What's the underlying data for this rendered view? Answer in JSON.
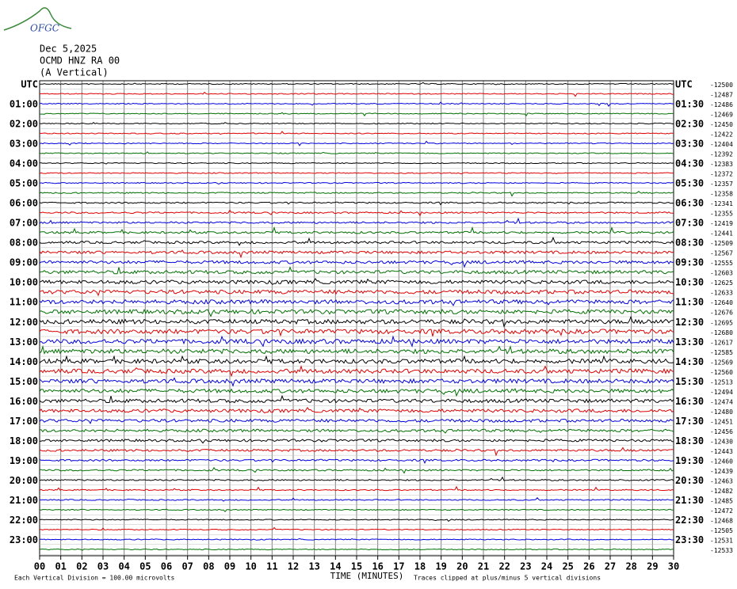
{
  "header": {
    "logo": "OFGC",
    "date": "Dec 5,2025",
    "station": "OCMD HNZ RA 00",
    "component": "(A Vertical)"
  },
  "left_labels": [
    "UTC",
    "01:00",
    "02:00",
    "03:00",
    "04:00",
    "05:00",
    "06:00",
    "07:00",
    "08:00",
    "09:00",
    "10:00",
    "11:00",
    "12:00",
    "13:00",
    "14:00",
    "15:00",
    "16:00",
    "17:00",
    "18:00",
    "19:00",
    "20:00",
    "21:00",
    "22:00",
    "23:00"
  ],
  "right_labels": [
    "UTC",
    "01:30",
    "02:30",
    "03:30",
    "04:30",
    "05:30",
    "06:30",
    "07:30",
    "08:30",
    "09:30",
    "10:30",
    "11:30",
    "12:30",
    "13:30",
    "14:30",
    "15:30",
    "16:30",
    "17:30",
    "18:30",
    "19:30",
    "20:30",
    "21:30",
    "22:30",
    "23:30"
  ],
  "trace_offsets": [
    -12500,
    -12487,
    -12486,
    -12469,
    -12450,
    -12422,
    -12404,
    -12392,
    -12383,
    -12372,
    -12357,
    -12358,
    -12341,
    -12355,
    -12419,
    -12441,
    -12509,
    -12567,
    -12555,
    -12603,
    -12625,
    -12633,
    -12640,
    -12676,
    -12695,
    -12680,
    -12617,
    -12585,
    -12569,
    -12560,
    -12513,
    -12494,
    -12474,
    -12480,
    -12451,
    -12456,
    -12430,
    -12443,
    -12460,
    -12439,
    -12463,
    -12482,
    -12485,
    -12472,
    -12468,
    -12505,
    -12531,
    -12533
  ],
  "x_labels": [
    "00",
    "01",
    "02",
    "03",
    "04",
    "05",
    "06",
    "07",
    "08",
    "09",
    "10",
    "11",
    "12",
    "13",
    "14",
    "15",
    "16",
    "17",
    "18",
    "19",
    "20",
    "21",
    "22",
    "23",
    "24",
    "25",
    "26",
    "27",
    "28",
    "29",
    "30"
  ],
  "footer": {
    "division": "Each Vertical Division =  100.00 microvolts",
    "axis_title": "TIME (MINUTES)",
    "clip_note": "Traces clipped at plus/minus 5 vertical divisions"
  }
}
